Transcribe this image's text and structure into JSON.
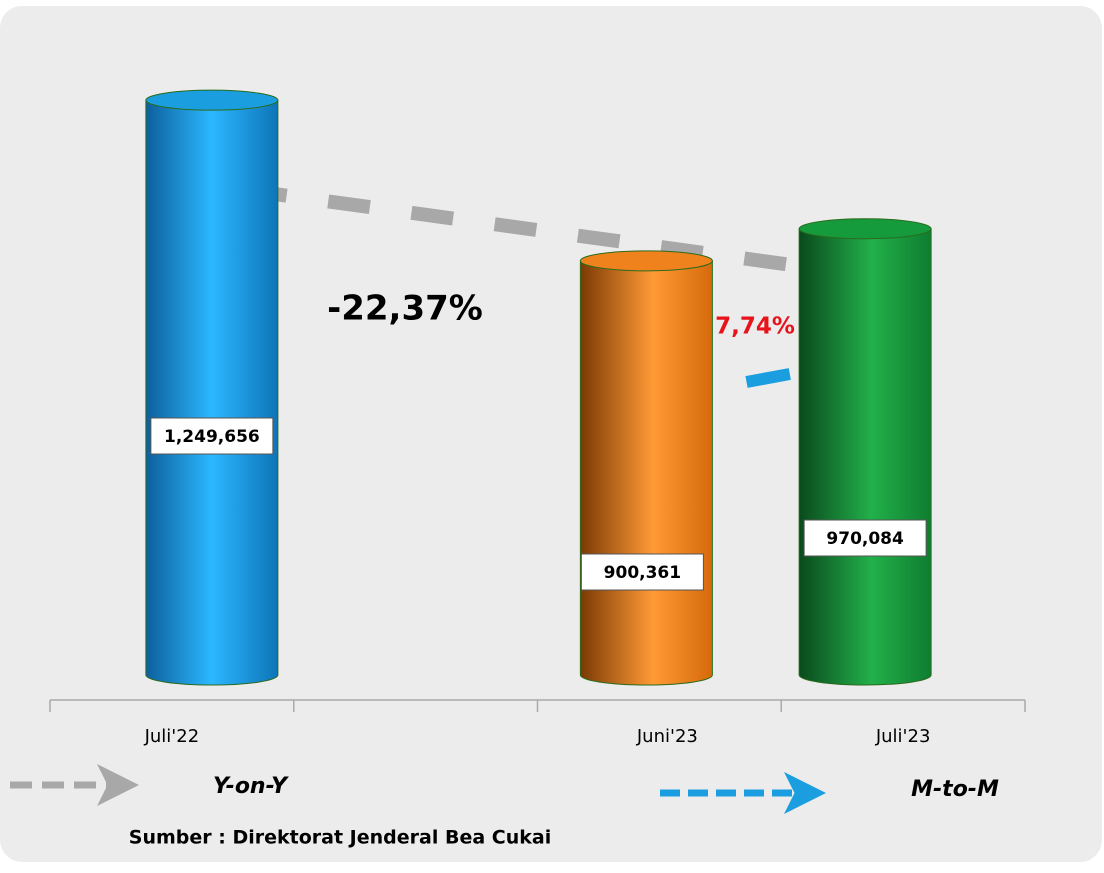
{
  "chart_data": {
    "type": "cylinder",
    "categories": [
      "Juli'22",
      null,
      "Juni'23",
      "Juli'23"
    ],
    "values": [
      1249656,
      null,
      900361,
      970084
    ],
    "value_labels": [
      "1,249,656",
      null,
      "900,361",
      "970,084"
    ],
    "colors": [
      "#1a9ee0",
      null,
      "#f0821e",
      "#159a3c"
    ],
    "ylim": [
      0,
      1400000
    ],
    "annotations": {
      "yoy": "-22,37%",
      "mtm": "7,74%"
    },
    "legend": {
      "yoy": "Y-on-Y",
      "mtm": "M-to-M"
    },
    "source": "Sumber : Direktorat Jenderal Bea Cukai"
  }
}
